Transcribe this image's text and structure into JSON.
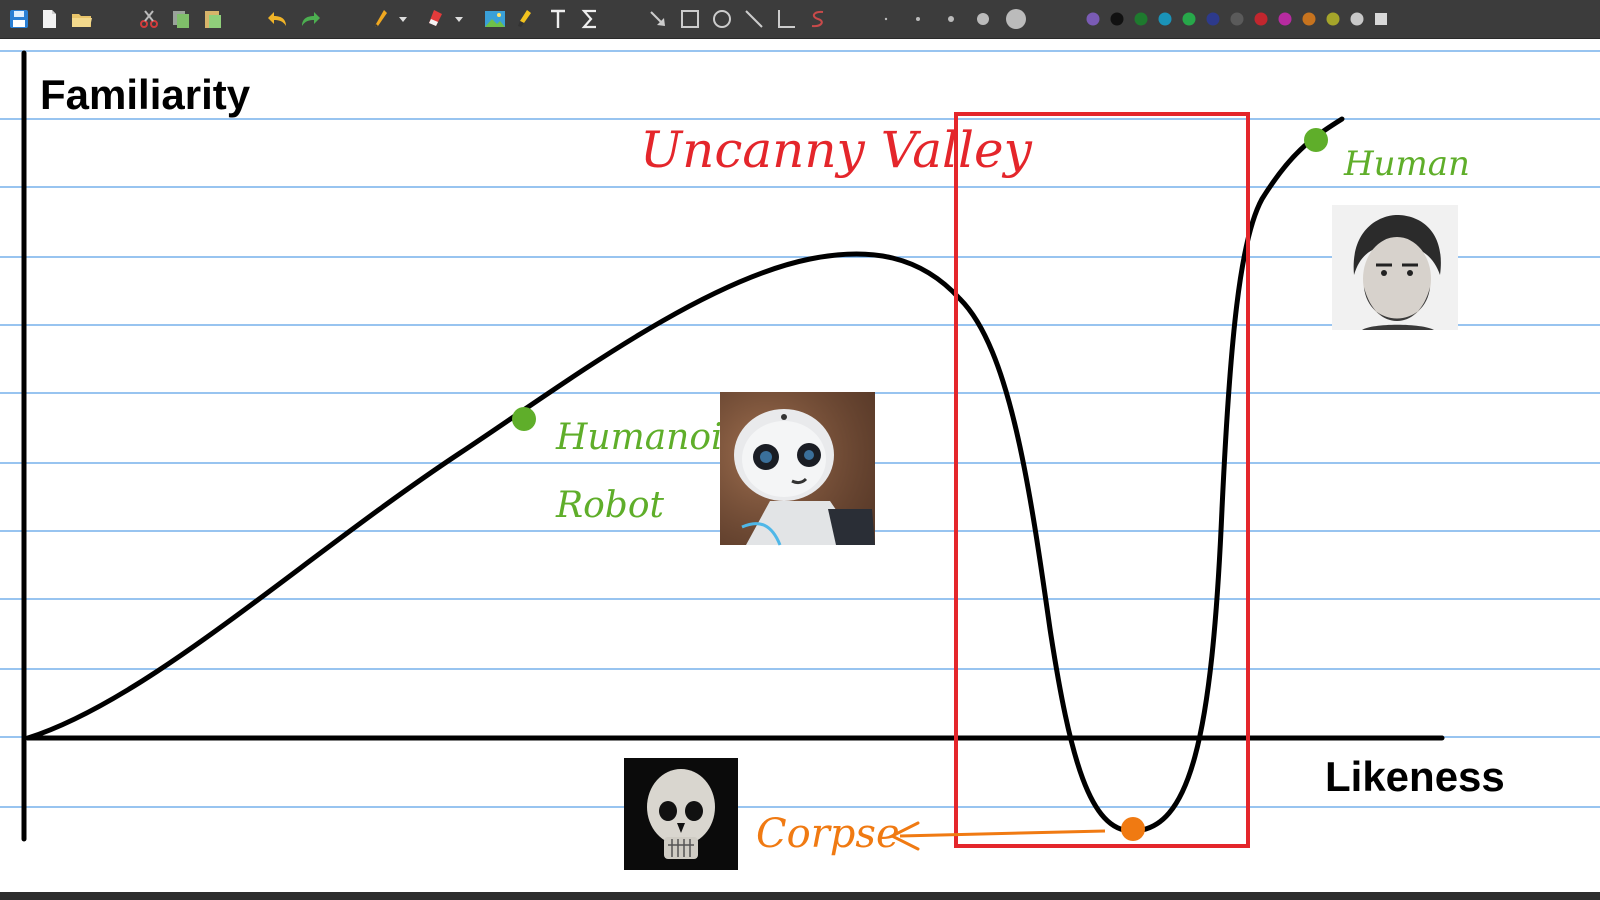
{
  "toolbar": {
    "tools": [
      {
        "name": "save-icon"
      },
      {
        "name": "new-page-icon"
      },
      {
        "name": "open-folder-icon"
      },
      {
        "name": "cut-icon"
      },
      {
        "name": "copy-icon"
      },
      {
        "name": "paste-icon"
      },
      {
        "name": "undo-icon"
      },
      {
        "name": "redo-icon"
      },
      {
        "name": "pen-icon"
      },
      {
        "name": "pen-dropdown-icon"
      },
      {
        "name": "eraser-icon"
      },
      {
        "name": "eraser-dropdown-icon"
      },
      {
        "name": "image-icon"
      },
      {
        "name": "highlighter-icon"
      },
      {
        "name": "text-icon"
      },
      {
        "name": "math-icon"
      },
      {
        "name": "arrow-icon"
      },
      {
        "name": "rectangle-icon"
      },
      {
        "name": "ellipse-icon"
      },
      {
        "name": "line-icon"
      },
      {
        "name": "axis-icon"
      },
      {
        "name": "spline-icon"
      }
    ],
    "pen_sizes": [
      "size-1",
      "size-2",
      "size-3",
      "size-4",
      "size-5"
    ],
    "colors": [
      "#7a5bb5",
      "#111111",
      "#1e7a2e",
      "#1a93b8",
      "#27a84a",
      "#2d3a8c",
      "#5a5a5a",
      "#c2262e",
      "#b72ba0",
      "#c7731e",
      "#a5a52a",
      "#c8c8c8",
      "#d8d8d8"
    ]
  },
  "canvas": {
    "rule_color": "#5aa0e6",
    "curve_color": "#000000",
    "valley_box_color": "#e4262b"
  },
  "labels": {
    "y_axis": "Familiarity",
    "x_axis": "Likeness",
    "uncanny_valley": "Uncanny Valley",
    "humanoid_line1": "Humanoid",
    "humanoid_line2": "Robot",
    "human": "Human",
    "corpse": "Corpse"
  },
  "colors": {
    "green": "#5fae2a",
    "orange": "#f07a12",
    "red": "#e4262b"
  }
}
